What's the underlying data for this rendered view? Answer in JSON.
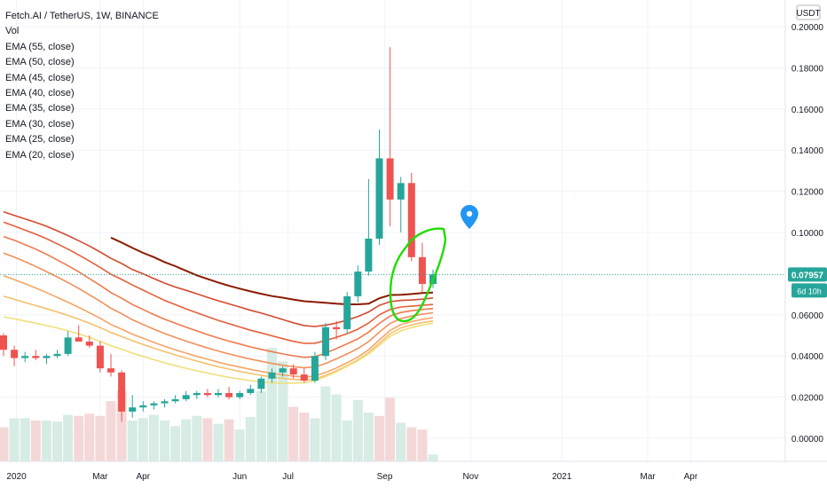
{
  "header": {
    "title": "Fetch.AI / TetherUS, 1W, BINANCE",
    "indicators": [
      "Vol",
      "EMA (55, close)",
      "EMA (50, close)",
      "EMA (45, close)",
      "EMA (40, close)",
      "EMA (35, close)",
      "EMA (30, close)",
      "EMA (25, close)",
      "EMA (20, close)"
    ]
  },
  "price_axis": {
    "currency": "USDT",
    "ticks": [
      "0.20000",
      "0.18000",
      "0.16000",
      "0.14000",
      "0.12000",
      "0.10000",
      "0.06000",
      "0.04000",
      "0.02000",
      "0.00000"
    ],
    "last_price_label": "0.07957",
    "countdown_label": "6d 10h"
  },
  "time_axis": {
    "labels": [
      "2020",
      "Mar",
      "Apr",
      "Jun",
      "Jul",
      "Sep",
      "Nov",
      "2021",
      "Mar",
      "Apr"
    ]
  },
  "colors": {
    "up": "#26a69a",
    "down": "#ef5350",
    "vol_up": "#d6ece4",
    "vol_down": "#f4d8d8",
    "grid": "#f0f3fa",
    "last_price": "#26a69a",
    "annotation": "#1fdc00",
    "marker": "#2196f3",
    "ema": [
      "#8b1a00",
      "#d44a2e",
      "#e65f3c",
      "#ee7a4e",
      "#f28f5a",
      "#f5a566",
      "#f4c06c",
      "#f0df7a"
    ]
  },
  "chart_data": {
    "type": "candlestick",
    "symbol": "Fetch.AI / TetherUS",
    "interval": "1W",
    "exchange": "BINANCE",
    "ylim": [
      -0.011,
      0.202
    ],
    "candles": [
      {
        "o": 0.05,
        "h": 0.051,
        "l": 0.04,
        "c": 0.043
      },
      {
        "o": 0.043,
        "h": 0.045,
        "l": 0.035,
        "c": 0.039
      },
      {
        "o": 0.039,
        "h": 0.042,
        "l": 0.037,
        "c": 0.04
      },
      {
        "o": 0.04,
        "h": 0.043,
        "l": 0.038,
        "c": 0.039
      },
      {
        "o": 0.039,
        "h": 0.041,
        "l": 0.036,
        "c": 0.04
      },
      {
        "o": 0.04,
        "h": 0.043,
        "l": 0.039,
        "c": 0.041
      },
      {
        "o": 0.041,
        "h": 0.052,
        "l": 0.04,
        "c": 0.049
      },
      {
        "o": 0.049,
        "h": 0.055,
        "l": 0.047,
        "c": 0.047
      },
      {
        "o": 0.047,
        "h": 0.05,
        "l": 0.044,
        "c": 0.045
      },
      {
        "o": 0.045,
        "h": 0.047,
        "l": 0.032,
        "c": 0.034
      },
      {
        "o": 0.034,
        "h": 0.041,
        "l": 0.03,
        "c": 0.032
      },
      {
        "o": 0.032,
        "h": 0.033,
        "l": 0.008,
        "c": 0.013
      },
      {
        "o": 0.013,
        "h": 0.021,
        "l": 0.01,
        "c": 0.015
      },
      {
        "o": 0.015,
        "h": 0.018,
        "l": 0.013,
        "c": 0.016
      },
      {
        "o": 0.016,
        "h": 0.018,
        "l": 0.014,
        "c": 0.017
      },
      {
        "o": 0.017,
        "h": 0.019,
        "l": 0.015,
        "c": 0.018
      },
      {
        "o": 0.018,
        "h": 0.021,
        "l": 0.017,
        "c": 0.019
      },
      {
        "o": 0.019,
        "h": 0.023,
        "l": 0.018,
        "c": 0.021
      },
      {
        "o": 0.021,
        "h": 0.023,
        "l": 0.019,
        "c": 0.022
      },
      {
        "o": 0.022,
        "h": 0.024,
        "l": 0.02,
        "c": 0.021
      },
      {
        "o": 0.021,
        "h": 0.024,
        "l": 0.02,
        "c": 0.022
      },
      {
        "o": 0.022,
        "h": 0.025,
        "l": 0.019,
        "c": 0.02
      },
      {
        "o": 0.02,
        "h": 0.023,
        "l": 0.019,
        "c": 0.022
      },
      {
        "o": 0.022,
        "h": 0.026,
        "l": 0.021,
        "c": 0.024
      },
      {
        "o": 0.024,
        "h": 0.03,
        "l": 0.022,
        "c": 0.029
      },
      {
        "o": 0.029,
        "h": 0.034,
        "l": 0.027,
        "c": 0.032
      },
      {
        "o": 0.032,
        "h": 0.035,
        "l": 0.03,
        "c": 0.034
      },
      {
        "o": 0.034,
        "h": 0.036,
        "l": 0.029,
        "c": 0.031
      },
      {
        "o": 0.031,
        "h": 0.034,
        "l": 0.027,
        "c": 0.028
      },
      {
        "o": 0.028,
        "h": 0.042,
        "l": 0.027,
        "c": 0.04
      },
      {
        "o": 0.04,
        "h": 0.056,
        "l": 0.038,
        "c": 0.054
      },
      {
        "o": 0.054,
        "h": 0.057,
        "l": 0.048,
        "c": 0.053
      },
      {
        "o": 0.053,
        "h": 0.071,
        "l": 0.051,
        "c": 0.069
      },
      {
        "o": 0.069,
        "h": 0.084,
        "l": 0.066,
        "c": 0.081
      },
      {
        "o": 0.081,
        "h": 0.126,
        "l": 0.079,
        "c": 0.097
      },
      {
        "o": 0.097,
        "h": 0.15,
        "l": 0.094,
        "c": 0.136
      },
      {
        "o": 0.136,
        "h": 0.19,
        "l": 0.103,
        "c": 0.116
      },
      {
        "o": 0.116,
        "h": 0.127,
        "l": 0.1,
        "c": 0.124
      },
      {
        "o": 0.124,
        "h": 0.129,
        "l": 0.086,
        "c": 0.088
      },
      {
        "o": 0.088,
        "h": 0.095,
        "l": 0.071,
        "c": 0.075
      },
      {
        "o": 0.075,
        "h": 0.082,
        "l": 0.073,
        "c": 0.0796
      }
    ],
    "volume": [
      {
        "v": 0.3,
        "up": false
      },
      {
        "v": 0.38,
        "up": true
      },
      {
        "v": 0.38,
        "up": true
      },
      {
        "v": 0.36,
        "up": false
      },
      {
        "v": 0.36,
        "up": true
      },
      {
        "v": 0.35,
        "up": true
      },
      {
        "v": 0.41,
        "up": true
      },
      {
        "v": 0.4,
        "up": false
      },
      {
        "v": 0.42,
        "up": false
      },
      {
        "v": 0.4,
        "up": false
      },
      {
        "v": 0.53,
        "up": false
      },
      {
        "v": 0.62,
        "up": false
      },
      {
        "v": 0.36,
        "up": true
      },
      {
        "v": 0.38,
        "up": true
      },
      {
        "v": 0.41,
        "up": true
      },
      {
        "v": 0.36,
        "up": true
      },
      {
        "v": 0.31,
        "up": true
      },
      {
        "v": 0.37,
        "up": true
      },
      {
        "v": 0.4,
        "up": true
      },
      {
        "v": 0.38,
        "up": false
      },
      {
        "v": 0.33,
        "up": true
      },
      {
        "v": 0.37,
        "up": false
      },
      {
        "v": 0.28,
        "up": true
      },
      {
        "v": 0.39,
        "up": true
      },
      {
        "v": 0.62,
        "up": true
      },
      {
        "v": 1.0,
        "up": true
      },
      {
        "v": 0.88,
        "up": true
      },
      {
        "v": 0.48,
        "up": false
      },
      {
        "v": 0.43,
        "up": false
      },
      {
        "v": 0.38,
        "up": true
      },
      {
        "v": 0.66,
        "up": true
      },
      {
        "v": 0.59,
        "up": true
      },
      {
        "v": 0.36,
        "up": true
      },
      {
        "v": 0.54,
        "up": true
      },
      {
        "v": 0.43,
        "up": true
      },
      {
        "v": 0.4,
        "up": false
      },
      {
        "v": 0.56,
        "up": false
      },
      {
        "v": 0.34,
        "up": true
      },
      {
        "v": 0.3,
        "up": false
      },
      {
        "v": 0.28,
        "up": false
      },
      {
        "v": 0.06,
        "up": true
      }
    ],
    "ema_names": [
      "EMA (55, close)",
      "EMA (50, close)",
      "EMA (45, close)",
      "EMA (40, close)",
      "EMA (35, close)",
      "EMA (30, close)",
      "EMA (25, close)",
      "EMA (20, close)"
    ],
    "ema_series": [
      {
        "start": 10,
        "values": [
          0.0975,
          0.0951,
          0.0925,
          0.0901,
          0.088,
          0.0856,
          0.0836,
          0.0814,
          0.0792,
          0.0774,
          0.0757,
          0.0741,
          0.0727,
          0.0714,
          0.0702,
          0.0691,
          0.0683,
          0.0674,
          0.0666,
          0.0662,
          0.0658,
          0.0654,
          0.0651,
          0.0651,
          0.0654,
          0.068,
          0.0696,
          0.0697,
          0.0701,
          0.0706,
          0.0708
        ]
      },
      {
        "start": 0,
        "values": [
          0.11,
          0.1083,
          0.1066,
          0.1049,
          0.103,
          0.1008,
          0.0985,
          0.096,
          0.0934,
          0.0905,
          0.0874,
          0.0849,
          0.082,
          0.0799,
          0.0776,
          0.0754,
          0.0735,
          0.0719,
          0.0702,
          0.0685,
          0.0668,
          0.0653,
          0.0638,
          0.0622,
          0.0608,
          0.0593,
          0.0577,
          0.0561,
          0.0548,
          0.0543,
          0.055,
          0.056,
          0.0574,
          0.0592,
          0.0614,
          0.0646,
          0.0664,
          0.067,
          0.0672,
          0.0676,
          0.0682
        ]
      },
      {
        "start": 0,
        "values": [
          0.105,
          0.1031,
          0.1011,
          0.0992,
          0.097,
          0.0945,
          0.0919,
          0.0891,
          0.0861,
          0.083,
          0.0797,
          0.0772,
          0.0745,
          0.072,
          0.0695,
          0.067,
          0.065,
          0.0629,
          0.061,
          0.0591,
          0.0573,
          0.0557,
          0.0541,
          0.0525,
          0.0512,
          0.0498,
          0.0484,
          0.0471,
          0.0461,
          0.0462,
          0.0475,
          0.0491,
          0.0508,
          0.053,
          0.056,
          0.06,
          0.0626,
          0.0638,
          0.0642,
          0.0646,
          0.065
        ]
      },
      {
        "start": 0,
        "values": [
          0.098,
          0.0962,
          0.0941,
          0.0919,
          0.0894,
          0.0867,
          0.0839,
          0.0809,
          0.0776,
          0.0743,
          0.0708,
          0.068,
          0.065,
          0.0626,
          0.0601,
          0.0579,
          0.0559,
          0.054,
          0.0522,
          0.0504,
          0.0487,
          0.0472,
          0.0458,
          0.0444,
          0.0432,
          0.0421,
          0.041,
          0.0401,
          0.0393,
          0.0397,
          0.0414,
          0.0436,
          0.0459,
          0.0483,
          0.0516,
          0.0558,
          0.0594,
          0.0611,
          0.062,
          0.0626,
          0.063
        ]
      },
      {
        "start": 0,
        "values": [
          0.09,
          0.088,
          0.0858,
          0.0835,
          0.081,
          0.0784,
          0.0757,
          0.0728,
          0.0697,
          0.0666,
          0.0632,
          0.0605,
          0.0576,
          0.0553,
          0.053,
          0.0509,
          0.049,
          0.0472,
          0.0455,
          0.0439,
          0.0424,
          0.041,
          0.0397,
          0.0385,
          0.0374,
          0.0364,
          0.0355,
          0.0348,
          0.0343,
          0.0347,
          0.0364,
          0.0386,
          0.041,
          0.0436,
          0.047,
          0.0516,
          0.0558,
          0.0582,
          0.0594,
          0.0603,
          0.061
        ]
      },
      {
        "start": 0,
        "values": [
          0.079,
          0.0771,
          0.0751,
          0.073,
          0.0708,
          0.0685,
          0.0661,
          0.0636,
          0.061,
          0.0583,
          0.0553,
          0.053,
          0.0506,
          0.0486,
          0.0466,
          0.0447,
          0.043,
          0.0414,
          0.0398,
          0.0384,
          0.037,
          0.0357,
          0.0346,
          0.0335,
          0.0325,
          0.0316,
          0.0308,
          0.0302,
          0.0298,
          0.0302,
          0.032,
          0.0342,
          0.0367,
          0.0395,
          0.043,
          0.0478,
          0.0524,
          0.0552,
          0.0567,
          0.0578,
          0.0586
        ]
      },
      {
        "start": 0,
        "values": [
          0.069,
          0.0675,
          0.066,
          0.0645,
          0.063,
          0.0614,
          0.0597,
          0.0579,
          0.0559,
          0.0538,
          0.0514,
          0.0495,
          0.0474,
          0.0456,
          0.0438,
          0.0421,
          0.0405,
          0.039,
          0.0375,
          0.0361,
          0.0348,
          0.0336,
          0.0325,
          0.0315,
          0.0306,
          0.0298,
          0.0291,
          0.0286,
          0.0283,
          0.0288,
          0.0306,
          0.0328,
          0.0353,
          0.0381,
          0.0416,
          0.0462,
          0.0508,
          0.0536,
          0.0551,
          0.0562,
          0.057
        ]
      },
      {
        "start": 0,
        "values": [
          0.059,
          0.058,
          0.057,
          0.0559,
          0.0548,
          0.0536,
          0.0522,
          0.0507,
          0.049,
          0.0471,
          0.045,
          0.0433,
          0.0414,
          0.0398,
          0.0382,
          0.0367,
          0.0353,
          0.034,
          0.0328,
          0.0317,
          0.0306,
          0.0296,
          0.0288,
          0.028,
          0.0274,
          0.027,
          0.0268,
          0.0268,
          0.027,
          0.028,
          0.03,
          0.0323,
          0.0349,
          0.0377,
          0.041,
          0.0452,
          0.0495,
          0.0522,
          0.0538,
          0.055,
          0.056
        ]
      }
    ],
    "time_labels": [
      {
        "text": "2020",
        "bar": 1.2
      },
      {
        "text": "Mar",
        "bar": 9.0
      },
      {
        "text": "Apr",
        "bar": 13.0
      },
      {
        "text": "Jun",
        "bar": 22.0
      },
      {
        "text": "Jul",
        "bar": 26.5
      },
      {
        "text": "Sep",
        "bar": 35.5
      },
      {
        "text": "Nov",
        "bar": 43.5
      },
      {
        "text": "2021",
        "bar": 52.0
      },
      {
        "text": "Mar",
        "bar": 60.0
      },
      {
        "text": "Apr",
        "bar": 64.0
      }
    ],
    "y_ticks": [
      0.2,
      0.18,
      0.16,
      0.14,
      0.12,
      0.1,
      0.06,
      0.04,
      0.02,
      0.0
    ],
    "last_price": 0.07957,
    "grid": true
  }
}
